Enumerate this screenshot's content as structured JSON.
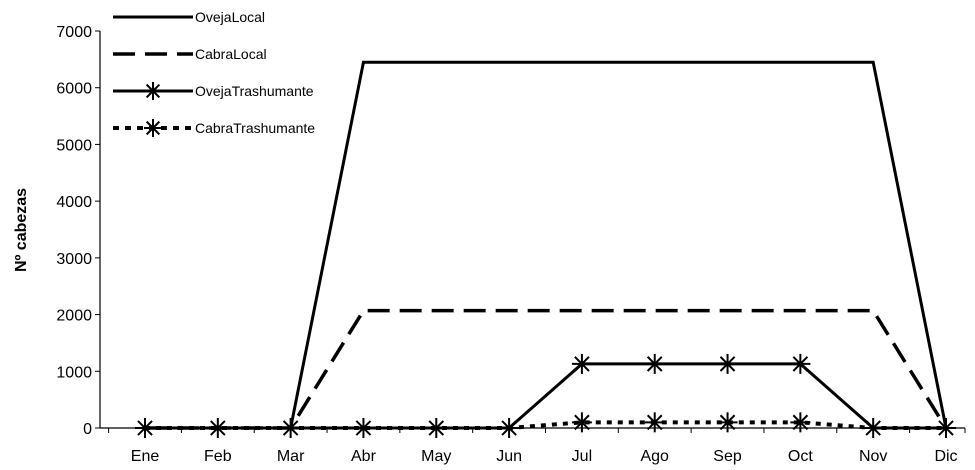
{
  "chart_data": {
    "type": "line",
    "title": "",
    "xlabel": "",
    "ylabel": "Nº cabezas",
    "ylim": [
      0,
      7000
    ],
    "yticks": [
      0,
      1000,
      2000,
      3000,
      4000,
      5000,
      6000,
      7000
    ],
    "categories": [
      "Ene",
      "Feb",
      "Mar",
      "Abr",
      "May",
      "Jun",
      "Jul",
      "Ago",
      "Sep",
      "Oct",
      "Nov",
      "Dic"
    ],
    "grid": false,
    "legend_position": "top-left",
    "series": [
      {
        "name": "OvejaLocal",
        "style": "solid",
        "marker": "none",
        "color": "#000000",
        "values": [
          0,
          0,
          0,
          6450,
          6450,
          6450,
          6450,
          6450,
          6450,
          6450,
          6450,
          0
        ]
      },
      {
        "name": "CabraLocal",
        "style": "dashed",
        "marker": "none",
        "color": "#000000",
        "values": [
          0,
          0,
          0,
          2070,
          2070,
          2070,
          2070,
          2070,
          2070,
          2070,
          2070,
          0
        ]
      },
      {
        "name": "OvejaTrashumante",
        "style": "solid",
        "marker": "asterisk",
        "color": "#000000",
        "values": [
          0,
          0,
          0,
          0,
          0,
          0,
          1130,
          1130,
          1130,
          1130,
          0,
          0
        ]
      },
      {
        "name": "CabraTrashumante",
        "style": "dotted",
        "marker": "asterisk",
        "color": "#000000",
        "values": [
          0,
          0,
          0,
          0,
          0,
          0,
          100,
          100,
          100,
          100,
          0,
          0
        ]
      }
    ]
  }
}
